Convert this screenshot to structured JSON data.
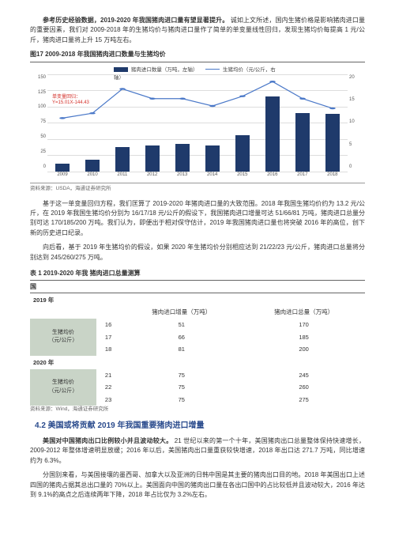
{
  "intro": {
    "bold": "参考历史经验数据，2019-2020 年我国猪肉进口量有望显著提升。",
    "text": "诚如上文所述，国内生猪价格是影响猪肉进口量的重要因素，我们对 2009-2018 年的生猪均价与猪肉进口量作了简单的单变量线性回归，发现生猪均价每提高 1 元/公斤，猪肉进口量将上升 15 万吨左右。"
  },
  "chart": {
    "title": "图17 2009-2018 年我国猪肉进口数量与生猪均价",
    "legend_bar": "猪肉进口数量（万吨，左轴）",
    "legend_line": "生猪均价（元/公斤，右轴）",
    "y_left_ticks": [
      "150",
      "125",
      "100",
      "75",
      "50",
      "25",
      "0"
    ],
    "y_right_ticks": [
      "20",
      "15",
      "10",
      "5",
      "0"
    ],
    "x_labels": [
      "2009",
      "2010",
      "2011",
      "2012",
      "2013",
      "2014",
      "2015",
      "2016",
      "2017",
      "2018"
    ],
    "reg_label1": "单变量回归：",
    "reg_label2": "Y=15.01X-144.43",
    "bars": [
      12,
      18,
      37,
      40,
      42,
      40,
      55,
      115,
      90,
      88
    ],
    "bar_max": 150,
    "line": [
      11,
      12,
      17,
      15,
      15,
      13.5,
      15.5,
      18.5,
      15,
      13
    ],
    "line_min": 0,
    "line_max": 20,
    "bar_color": "#1f3a6b",
    "line_color": "#4a78c8",
    "grid_color": "#dddddd",
    "source": "资料来源：USDA，海通证券研究所"
  },
  "para2": "基于这一单变量回归方程，我们匡算了 2019-2020 年猪肉进口量的大致范围。2018 年我国生猪均价约为 13.2 元/公斤，在 2019 年我国生猪均价分别为 16/17/18 元/公斤的假设下，我国猪肉进口增量可达 51/66/81 万吨，猪肉进口总量分别可达 170/185/200 万吨。我们认为，即便出于相对保守估计，2019 年我国猪肉进口量也将突破 2016 年的高位，创下新的历史进口纪录。",
  "para3": "向后看，基于 2019 年生猪均价的假设，如果 2020 年生猪均价分别相应达到 21/22/23 元/公斤，猪肉进口总量将分别达到 245/260/275 万吨。",
  "table": {
    "title": "表 1  2019-2020 年我   猪肉进口总量测算",
    "country": "国",
    "header_inc": "猪肉进口增量（万吨）",
    "header_tot": "猪肉进口总量（万吨）",
    "yr2019": "2019 年",
    "group2019_label": "生猪均价\n（元/公斤）",
    "rows2019": [
      {
        "p": "16",
        "inc": "51",
        "tot": "170"
      },
      {
        "p": "17",
        "inc": "66",
        "tot": "185"
      },
      {
        "p": "18",
        "inc": "81",
        "tot": "200"
      }
    ],
    "yr2020": "2020 年",
    "group2020_label": "生猪均价\n（元/公斤）",
    "rows2020": [
      {
        "p": "21",
        "inc": "75",
        "tot": "245"
      },
      {
        "p": "22",
        "inc": "75",
        "tot": "260"
      },
      {
        "p": "23",
        "inc": "75",
        "tot": "275"
      }
    ],
    "source": "资料来源：Wind，海通证券研究所"
  },
  "section_h": "4.2 美国或将贡献 2019 年我国重要猪肉进口增量",
  "para4": {
    "bold": "美国对中国猪肉出口比例较小并且波动较大。",
    "text": "21 世纪以来的第一个十年，美国猪肉出口总量整体保持快速增长，2009-2012 年整体增速明显放缓；2016 年以后，美国猪肉出口量重获较快增速，2018 年出口达 271.7 万吨，同比增速约为 6.3%。"
  },
  "para5": "分国别来看，与美国接壤的墨西哥、加拿大以及亚洲的日韩中国是其主要的猪肉出口目的地。2018 年美国出口上述四国的猪肉占据其总出口量的 70%以上。美国面向中国的猪肉出口量在各出口国中的占比较低并且波动较大，2016 年达到 9.1%的高点之后连续两年下降，2018 年占比仅为 3.2%左右。"
}
